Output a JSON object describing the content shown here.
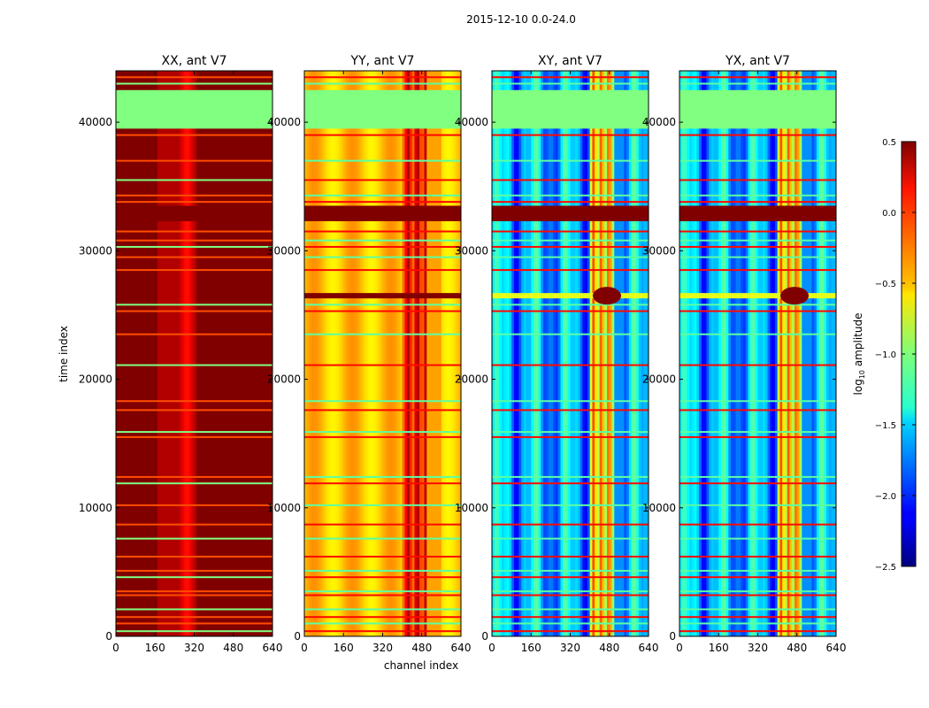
{
  "chart_data": {
    "type": "heatmap",
    "suptitle": "2015-12-10 0.0-24.0",
    "xlabel": "channel index",
    "ylabel": "time index",
    "xlim": [
      0,
      640
    ],
    "ylim": [
      0,
      44000
    ],
    "xticks": [
      "0",
      "160",
      "320",
      "480",
      "640"
    ],
    "yticks": [
      "0",
      "10000",
      "20000",
      "30000",
      "40000"
    ],
    "xtick_values": [
      0,
      160,
      320,
      480,
      640
    ],
    "ytick_values": [
      0,
      10000,
      20000,
      30000,
      40000
    ],
    "colormap": "jet",
    "colorbar": {
      "label": "log10 amplitude",
      "label_main": "log",
      "label_sub": "10",
      "label_rest": " amplitude",
      "range": [
        -2.5,
        0.5
      ],
      "ticks": [
        "0.5",
        "0.0",
        "−0.5",
        "−1.0",
        "−1.5",
        "−2.0",
        "−2.5"
      ],
      "tick_values": [
        0.5,
        0.0,
        -0.5,
        -1.0,
        -1.5,
        -2.0,
        -2.5
      ]
    },
    "panels": [
      {
        "title": "XX, ant V7",
        "pol": "XX",
        "base_level": 0.5,
        "peak_channel": 290,
        "description": "saturated high amplitude with brighter band near channel 290"
      },
      {
        "title": "YY, ant V7",
        "pol": "YY",
        "base_level": -0.45,
        "peak_channel": 460,
        "description": "moderate amplitude with RFI structure near channels 420-500"
      },
      {
        "title": "XY, ant V7",
        "pol": "XY",
        "base_level": -1.6,
        "peak_channel": 460,
        "description": "low amplitude cross-pol with vertical stripes"
      },
      {
        "title": "YX, ant V7",
        "pol": "YX",
        "base_level": -1.6,
        "peak_channel": 460,
        "description": "low amplitude cross-pol with vertical stripes"
      }
    ],
    "flagged_block": {
      "time_range": [
        39500,
        42500
      ],
      "value": -1.0
    },
    "bright_event_time": 26500
  }
}
